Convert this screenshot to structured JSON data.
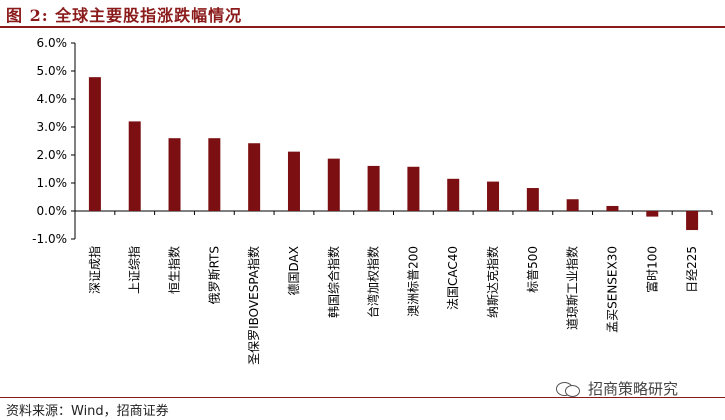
{
  "header": {
    "title": "图 2:  全球主要股指涨跌幅情况"
  },
  "footer": {
    "source": "资料来源：Wind，招商证券",
    "watermark": "招商策略研究"
  },
  "chart_data": {
    "type": "bar",
    "title": "",
    "xlabel": "",
    "ylabel": "",
    "ylim": [
      -1.0,
      6.0
    ],
    "ytick_step": 1.0,
    "ytick_labels": [
      "-1.0%",
      "0.0%",
      "1.0%",
      "2.0%",
      "3.0%",
      "4.0%",
      "5.0%",
      "6.0%"
    ],
    "grid": false,
    "bar_color": "#7b0f12",
    "categories": [
      "深证成指",
      "上证综指",
      "恒生指数",
      "俄罗斯RTS",
      "圣保罗IBOVESPA指数",
      "德国DAX",
      "韩国综合指数",
      "台湾加权指数",
      "澳洲标普200",
      "法国CAC40",
      "纳斯达克指数",
      "标普500",
      "道琼斯工业指数",
      "孟买SENSEX30",
      "富时100",
      "日经225"
    ],
    "values": [
      4.78,
      3.2,
      2.6,
      2.6,
      2.42,
      2.12,
      1.87,
      1.61,
      1.58,
      1.15,
      1.05,
      0.82,
      0.42,
      0.18,
      -0.2,
      -0.68
    ]
  }
}
